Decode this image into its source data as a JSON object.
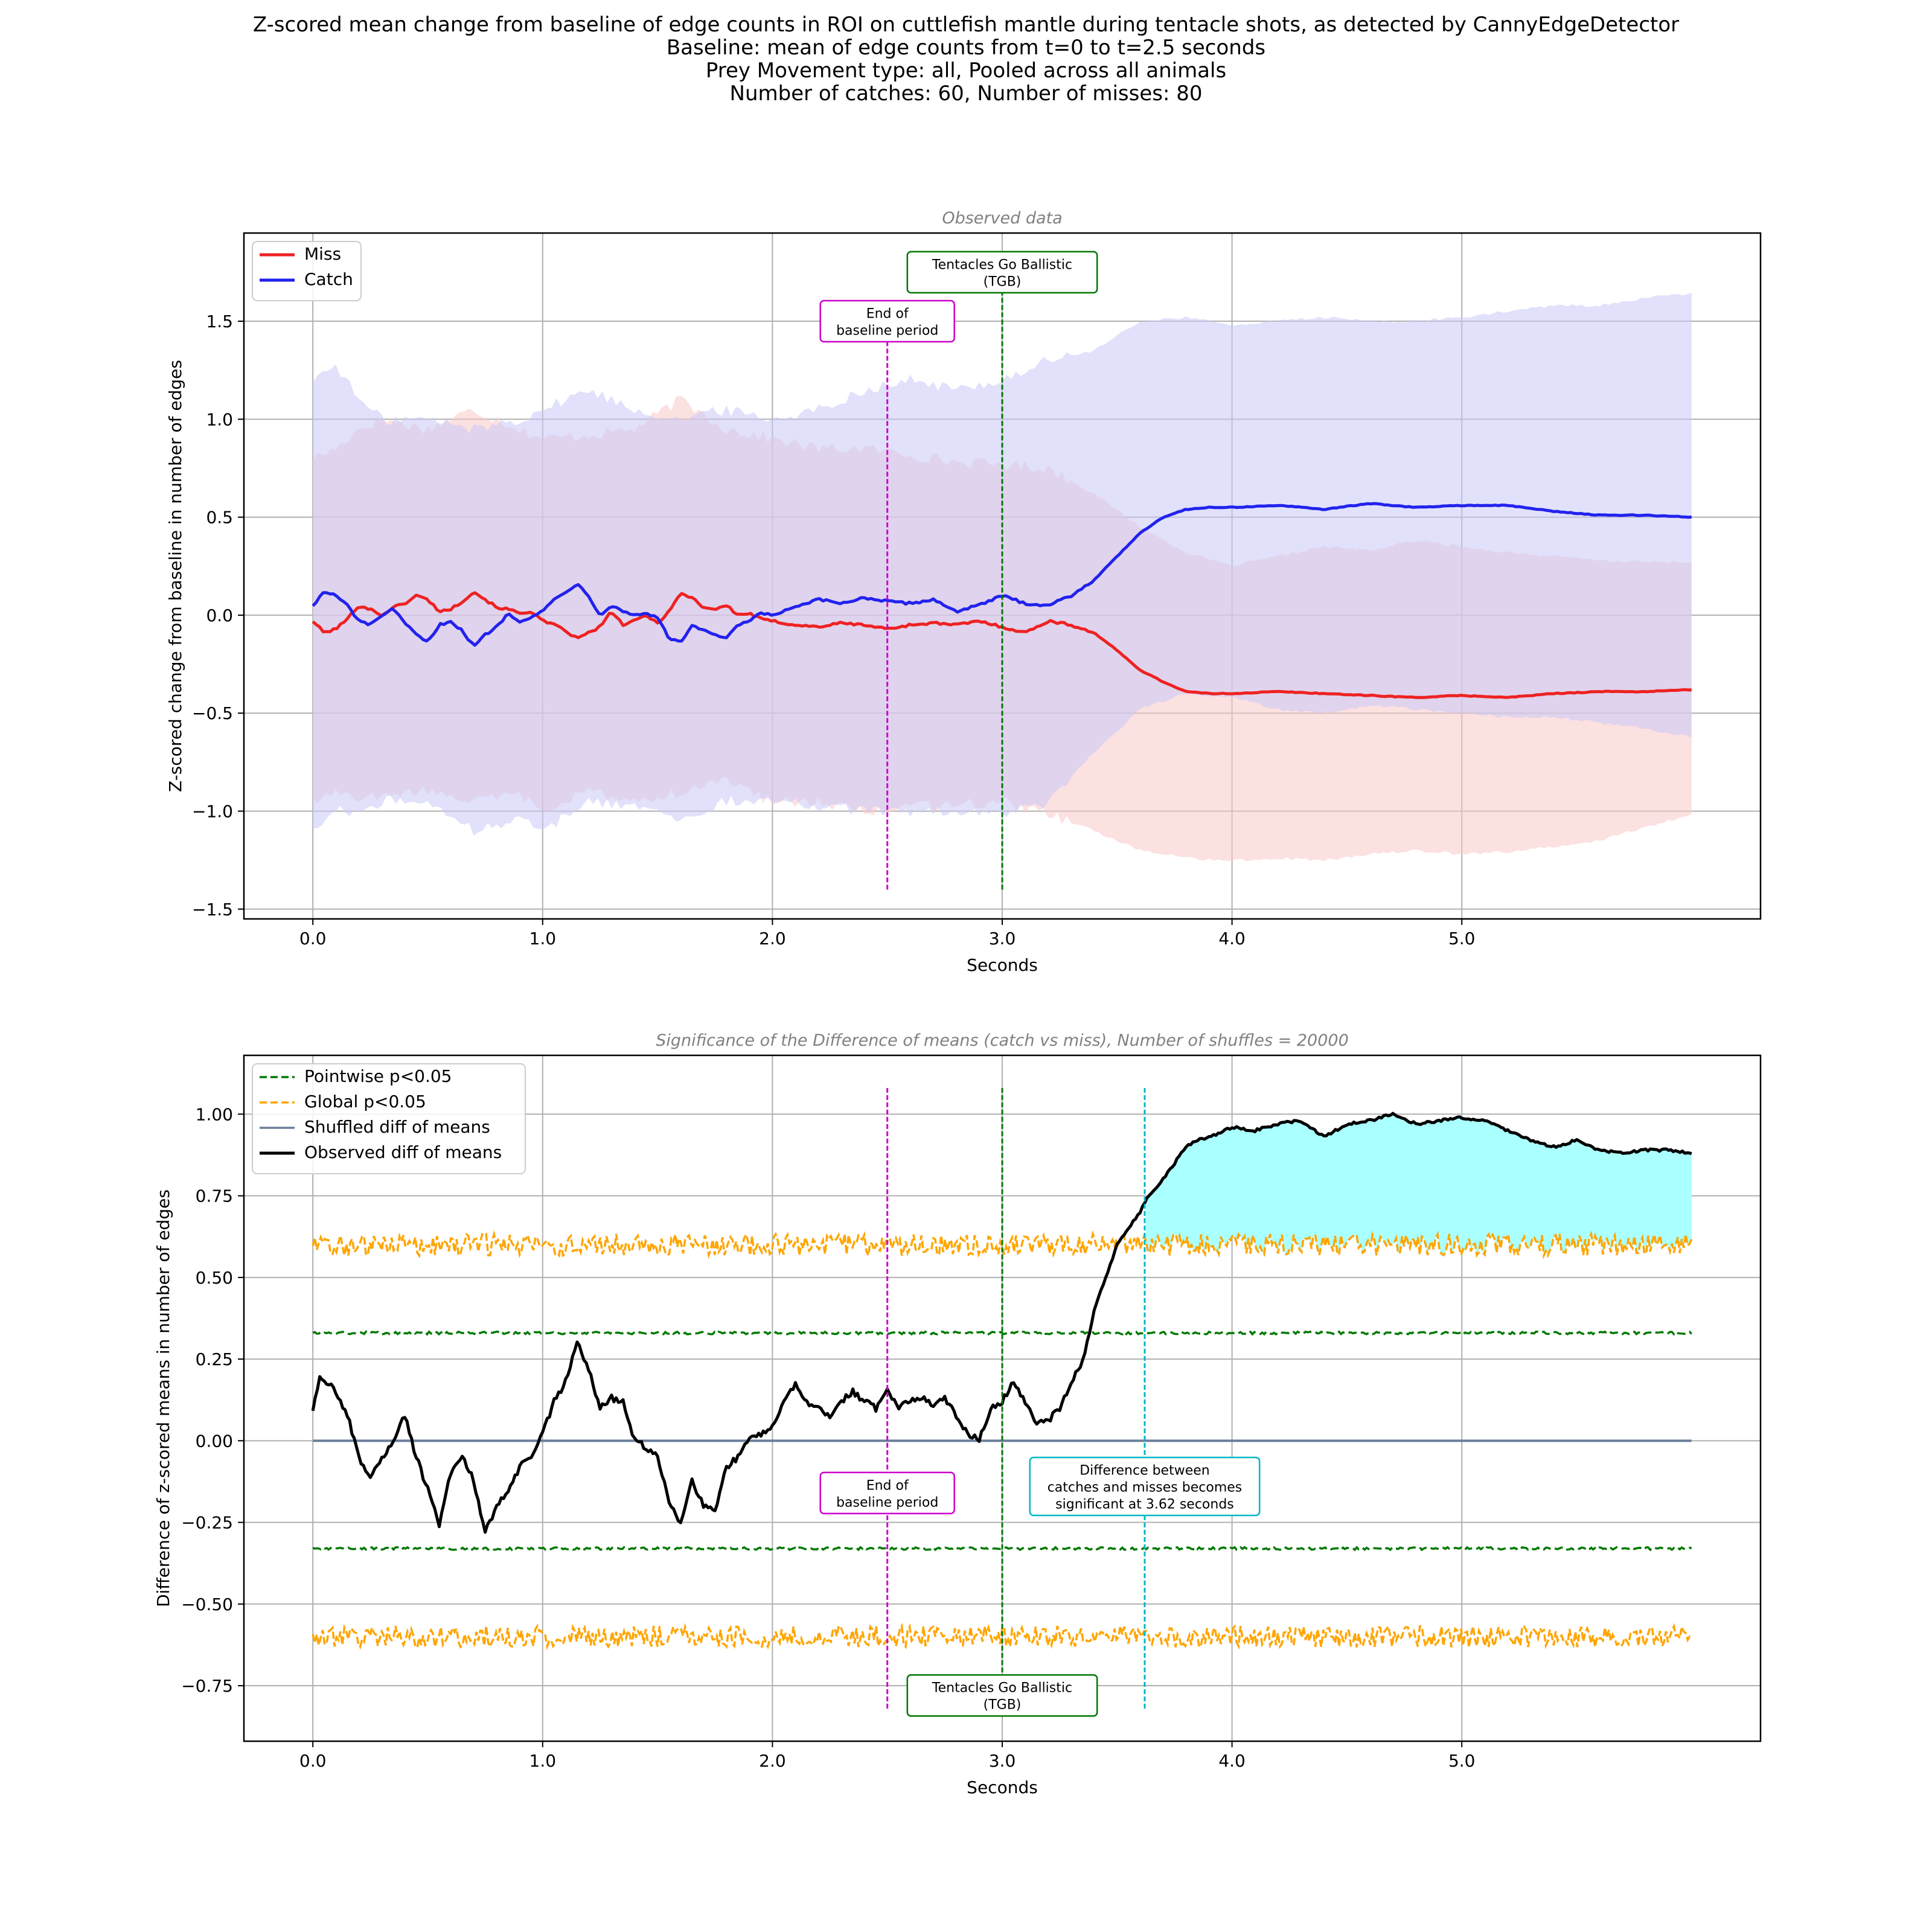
{
  "figure": {
    "title_lines": [
      "Z-scored mean change from baseline of edge counts in ROI on cuttlefish mantle during tentacle shots, as detected by CannyEdgeDetector",
      "Baseline: mean of edge counts from t=0 to t=2.5 seconds",
      "Prey Movement type: all, Pooled across all animals",
      "Number of catches: 60, Number of misses: 80"
    ]
  },
  "colors": {
    "miss": "#ee2222",
    "catch": "#2222ee",
    "miss_band": "#f9c8c8",
    "catch_band": "#c8c8f7",
    "baseline_marker": "#cc00cc",
    "tgb_marker": "#007700",
    "sig_marker": "#00b7c7",
    "pointwise": "#007a00",
    "global": "#ffa500",
    "shuffled": "#6a7f9a",
    "observed": "#000000",
    "sig_fill": "#aaffff",
    "grid": "#b0b0b0"
  },
  "chart_data": [
    {
      "type": "line",
      "title": "Observed data",
      "xlabel": "Seconds",
      "ylabel": "Z-scored change from baseline in number of edges",
      "xlim": [
        -0.3,
        6.3
      ],
      "ylim": [
        -1.55,
        1.95
      ],
      "xticks": [
        0.0,
        1.0,
        2.0,
        3.0,
        4.0,
        5.0
      ],
      "xtick_labels": [
        "0.0",
        "1.0",
        "2.0",
        "3.0",
        "4.0",
        "5.0"
      ],
      "yticks": [
        -1.5,
        -1.0,
        -0.5,
        0.0,
        0.5,
        1.0,
        1.5
      ],
      "ytick_labels": [
        "−1.5",
        "−1.0",
        "−0.5",
        "0.0",
        "0.5",
        "1.0",
        "1.5"
      ],
      "grid": true,
      "legend_position": "upper-left",
      "series": [
        {
          "name": "Miss",
          "x": [
            0.0,
            0.05,
            0.1,
            0.15,
            0.2,
            0.25,
            0.3,
            0.35,
            0.4,
            0.45,
            0.5,
            0.55,
            0.6,
            0.65,
            0.7,
            0.75,
            0.8,
            0.85,
            0.9,
            0.95,
            1.0,
            1.05,
            1.1,
            1.15,
            1.2,
            1.25,
            1.3,
            1.35,
            1.4,
            1.45,
            1.5,
            1.55,
            1.6,
            1.65,
            1.7,
            1.75,
            1.8,
            1.85,
            1.9,
            1.95,
            2.0,
            2.1,
            2.2,
            2.3,
            2.4,
            2.5,
            2.6,
            2.7,
            2.8,
            2.9,
            3.0,
            3.1,
            3.2,
            3.3,
            3.4,
            3.5,
            3.6,
            3.7,
            3.8,
            3.9,
            4.0,
            4.2,
            4.4,
            4.6,
            4.8,
            5.0,
            5.2,
            5.4,
            5.6,
            5.8,
            6.0
          ],
          "values": [
            -0.03,
            -0.09,
            -0.07,
            -0.02,
            0.05,
            0.03,
            0.0,
            0.04,
            0.06,
            0.1,
            0.08,
            0.02,
            0.03,
            0.07,
            0.12,
            0.08,
            0.04,
            0.03,
            0.01,
            0.02,
            -0.03,
            -0.05,
            -0.08,
            -0.12,
            -0.09,
            -0.06,
            0.02,
            -0.05,
            -0.03,
            0.0,
            -0.04,
            0.02,
            0.11,
            0.09,
            0.04,
            0.03,
            0.05,
            0.0,
            0.01,
            -0.02,
            -0.03,
            -0.05,
            -0.06,
            -0.04,
            -0.05,
            -0.07,
            -0.05,
            -0.04,
            -0.05,
            -0.03,
            -0.06,
            -0.09,
            -0.03,
            -0.05,
            -0.09,
            -0.18,
            -0.28,
            -0.34,
            -0.39,
            -0.4,
            -0.4,
            -0.39,
            -0.4,
            -0.41,
            -0.42,
            -0.41,
            -0.42,
            -0.4,
            -0.39,
            -0.39,
            -0.38
          ]
        },
        {
          "name": "Catch",
          "x": [
            0.0,
            0.05,
            0.1,
            0.15,
            0.2,
            0.25,
            0.3,
            0.35,
            0.4,
            0.45,
            0.5,
            0.55,
            0.6,
            0.65,
            0.7,
            0.75,
            0.8,
            0.85,
            0.9,
            0.95,
            1.0,
            1.05,
            1.1,
            1.15,
            1.2,
            1.25,
            1.3,
            1.35,
            1.4,
            1.45,
            1.5,
            1.55,
            1.6,
            1.65,
            1.7,
            1.75,
            1.8,
            1.85,
            1.9,
            1.95,
            2.0,
            2.1,
            2.2,
            2.3,
            2.4,
            2.5,
            2.6,
            2.7,
            2.8,
            2.9,
            3.0,
            3.1,
            3.2,
            3.3,
            3.4,
            3.5,
            3.6,
            3.7,
            3.8,
            3.9,
            4.0,
            4.2,
            4.4,
            4.6,
            4.8,
            5.0,
            5.2,
            5.4,
            5.6,
            5.8,
            6.0
          ],
          "values": [
            0.05,
            0.12,
            0.1,
            0.05,
            -0.03,
            -0.05,
            0.0,
            0.03,
            -0.04,
            -0.1,
            -0.14,
            -0.05,
            -0.03,
            -0.08,
            -0.16,
            -0.1,
            -0.06,
            0.01,
            -0.03,
            -0.01,
            0.02,
            0.08,
            0.12,
            0.16,
            0.1,
            0.0,
            0.05,
            0.02,
            0.0,
            0.01,
            -0.01,
            -0.12,
            -0.14,
            -0.05,
            -0.08,
            -0.1,
            -0.12,
            -0.05,
            -0.03,
            0.01,
            0.0,
            0.04,
            0.08,
            0.06,
            0.09,
            0.07,
            0.06,
            0.08,
            0.02,
            0.05,
            0.1,
            0.06,
            0.05,
            0.1,
            0.18,
            0.3,
            0.42,
            0.5,
            0.54,
            0.55,
            0.55,
            0.56,
            0.54,
            0.57,
            0.55,
            0.56,
            0.56,
            0.53,
            0.51,
            0.51,
            0.5
          ]
        }
      ],
      "bands": [
        {
          "series": "Miss",
          "x": [
            0.0,
            0.1,
            0.2,
            0.3,
            0.5,
            0.7,
            0.9,
            1.0,
            1.2,
            1.4,
            1.6,
            1.8,
            2.0,
            2.2,
            2.4,
            2.6,
            2.8,
            3.0,
            3.2,
            3.4,
            3.6,
            3.8,
            4.0,
            4.2,
            4.4,
            4.6,
            4.8,
            5.0,
            5.2,
            5.4,
            5.6,
            5.8,
            6.0
          ],
          "upper": [
            0.8,
            0.85,
            0.95,
            1.0,
            0.95,
            1.05,
            0.95,
            0.9,
            0.92,
            0.95,
            1.1,
            0.95,
            0.9,
            0.85,
            0.85,
            0.82,
            0.78,
            0.77,
            0.75,
            0.62,
            0.45,
            0.32,
            0.25,
            0.3,
            0.35,
            0.33,
            0.38,
            0.35,
            0.32,
            0.3,
            0.28,
            0.27,
            0.27
          ],
          "lower": [
            -0.95,
            -0.9,
            -0.95,
            -0.92,
            -0.9,
            -0.95,
            -0.92,
            -1.0,
            -0.9,
            -0.95,
            -0.9,
            -0.85,
            -0.95,
            -0.95,
            -1.0,
            -0.98,
            -0.97,
            -0.95,
            -1.02,
            -1.1,
            -1.2,
            -1.24,
            -1.25,
            -1.24,
            -1.25,
            -1.22,
            -1.2,
            -1.22,
            -1.21,
            -1.18,
            -1.15,
            -1.08,
            -1.02
          ]
        },
        {
          "series": "Catch",
          "x": [
            0.0,
            0.1,
            0.2,
            0.3,
            0.5,
            0.7,
            0.9,
            1.0,
            1.2,
            1.4,
            1.6,
            1.8,
            2.0,
            2.2,
            2.4,
            2.6,
            2.8,
            3.0,
            3.2,
            3.4,
            3.6,
            3.8,
            4.0,
            4.2,
            4.4,
            4.6,
            4.8,
            5.0,
            5.2,
            5.4,
            5.6,
            5.8,
            6.0
          ],
          "upper": [
            1.2,
            1.28,
            1.1,
            1.0,
            1.0,
            0.95,
            1.0,
            1.05,
            1.15,
            1.05,
            1.0,
            1.05,
            1.0,
            1.05,
            1.15,
            1.2,
            1.15,
            1.2,
            1.3,
            1.35,
            1.5,
            1.52,
            1.48,
            1.5,
            1.52,
            1.5,
            1.5,
            1.52,
            1.55,
            1.58,
            1.58,
            1.62,
            1.64
          ],
          "lower": [
            -1.1,
            -1.0,
            -1.0,
            -0.95,
            -0.95,
            -1.1,
            -1.05,
            -1.1,
            -0.95,
            -0.98,
            -1.05,
            -0.95,
            -0.95,
            -0.98,
            -1.0,
            -1.0,
            -1.0,
            -1.02,
            -0.95,
            -0.7,
            -0.48,
            -0.4,
            -0.42,
            -0.48,
            -0.5,
            -0.46,
            -0.48,
            -0.5,
            -0.52,
            -0.52,
            -0.55,
            -0.58,
            -0.62
          ]
        }
      ],
      "vlines": [
        {
          "x": 2.5,
          "label": "End of\nbaseline period",
          "label_y": 1.5,
          "color_key": "baseline_marker",
          "y_range": [
            -1.4,
            1.6
          ]
        },
        {
          "x": 3.0,
          "label": "Tentacles Go Ballistic\n(TGB)",
          "label_y": 1.75,
          "color_key": "tgb_marker",
          "y_range": [
            -1.4,
            1.85
          ]
        }
      ]
    },
    {
      "type": "line",
      "title": "Significance of the Difference of means (catch vs miss), Number of shuffles = 20000",
      "xlabel": "Seconds",
      "ylabel": "Difference of z-scored means in number of edges",
      "xlim": [
        -0.3,
        6.3
      ],
      "ylim": [
        -0.92,
        1.18
      ],
      "xticks": [
        0.0,
        1.0,
        2.0,
        3.0,
        4.0,
        5.0
      ],
      "xtick_labels": [
        "0.0",
        "1.0",
        "2.0",
        "3.0",
        "4.0",
        "5.0"
      ],
      "yticks": [
        -0.75,
        -0.5,
        -0.25,
        0.0,
        0.25,
        0.5,
        0.75,
        1.0
      ],
      "ytick_labels": [
        "−0.75",
        "−0.50",
        "−0.25",
        "0.00",
        "0.25",
        "0.50",
        "0.75",
        "1.00"
      ],
      "grid": true,
      "legend_position": "upper-left",
      "series": [
        {
          "name": "Pointwise p<0.05",
          "style": "dashed",
          "color_key": "pointwise",
          "upper_level": 0.33,
          "lower_level": -0.33,
          "noise": 0.004
        },
        {
          "name": "Global p<0.05",
          "style": "dashed",
          "color_key": "global",
          "upper_level": 0.6,
          "lower_level": -0.6,
          "noise": 0.022
        },
        {
          "name": "Shuffled diff of means",
          "style": "solid",
          "color_key": "shuffled",
          "level": 0.0
        },
        {
          "name": "Observed diff of means",
          "style": "solid",
          "color_key": "observed",
          "x": [
            0.0,
            0.03,
            0.06,
            0.1,
            0.15,
            0.2,
            0.25,
            0.3,
            0.35,
            0.4,
            0.45,
            0.5,
            0.55,
            0.6,
            0.65,
            0.7,
            0.75,
            0.8,
            0.85,
            0.9,
            0.95,
            1.0,
            1.05,
            1.1,
            1.15,
            1.2,
            1.25,
            1.3,
            1.35,
            1.4,
            1.45,
            1.5,
            1.55,
            1.6,
            1.65,
            1.7,
            1.75,
            1.8,
            1.85,
            1.9,
            1.95,
            2.0,
            2.05,
            2.1,
            2.15,
            2.2,
            2.25,
            2.3,
            2.35,
            2.4,
            2.45,
            2.5,
            2.55,
            2.6,
            2.65,
            2.7,
            2.75,
            2.8,
            2.85,
            2.9,
            2.95,
            3.0,
            3.05,
            3.1,
            3.15,
            3.2,
            3.25,
            3.3,
            3.35,
            3.4,
            3.45,
            3.5,
            3.55,
            3.6,
            3.62,
            3.65,
            3.7,
            3.75,
            3.8,
            3.85,
            3.9,
            4.0,
            4.1,
            4.2,
            4.3,
            4.4,
            4.5,
            4.6,
            4.7,
            4.8,
            4.9,
            5.0,
            5.1,
            5.2,
            5.3,
            5.4,
            5.5,
            5.6,
            5.7,
            5.8,
            5.9,
            6.0
          ],
          "values": [
            0.09,
            0.2,
            0.18,
            0.15,
            0.08,
            -0.05,
            -0.12,
            -0.05,
            0.0,
            0.08,
            -0.05,
            -0.15,
            -0.26,
            -0.1,
            -0.05,
            -0.12,
            -0.28,
            -0.2,
            -0.15,
            -0.08,
            -0.05,
            0.02,
            0.12,
            0.18,
            0.3,
            0.22,
            0.1,
            0.13,
            0.12,
            0.0,
            -0.02,
            -0.05,
            -0.18,
            -0.26,
            -0.12,
            -0.2,
            -0.22,
            -0.08,
            -0.05,
            0.0,
            0.02,
            0.05,
            0.12,
            0.17,
            0.12,
            0.1,
            0.08,
            0.12,
            0.15,
            0.12,
            0.1,
            0.16,
            0.1,
            0.12,
            0.13,
            0.11,
            0.13,
            0.08,
            0.02,
            0.0,
            0.1,
            0.12,
            0.18,
            0.12,
            0.05,
            0.06,
            0.1,
            0.18,
            0.24,
            0.4,
            0.5,
            0.6,
            0.65,
            0.7,
            0.73,
            0.76,
            0.8,
            0.85,
            0.9,
            0.92,
            0.93,
            0.96,
            0.95,
            0.97,
            0.98,
            0.93,
            0.97,
            0.98,
            1.0,
            0.97,
            0.98,
            0.99,
            0.98,
            0.95,
            0.92,
            0.9,
            0.92,
            0.89,
            0.88,
            0.89,
            0.89,
            0.88
          ]
        }
      ],
      "significant_fill": {
        "from_x": 3.62,
        "to_x": 6.0
      },
      "vlines": [
        {
          "x": 2.5,
          "label": "End of\nbaseline period",
          "label_y": -0.16,
          "color_key": "baseline_marker",
          "y_range": [
            -0.82,
            1.08
          ]
        },
        {
          "x": 3.0,
          "label": "Tentacles Go Ballistic\n(TGB)",
          "label_y": -0.78,
          "color_key": "tgb_marker",
          "y_range": [
            -0.82,
            1.08
          ]
        },
        {
          "x": 3.62,
          "label": "Difference between\ncatches and misses becomes\nsignificant at 3.62 seconds",
          "label_y": -0.14,
          "color_key": "sig_marker",
          "y_range": [
            -0.82,
            1.08
          ]
        }
      ]
    }
  ]
}
